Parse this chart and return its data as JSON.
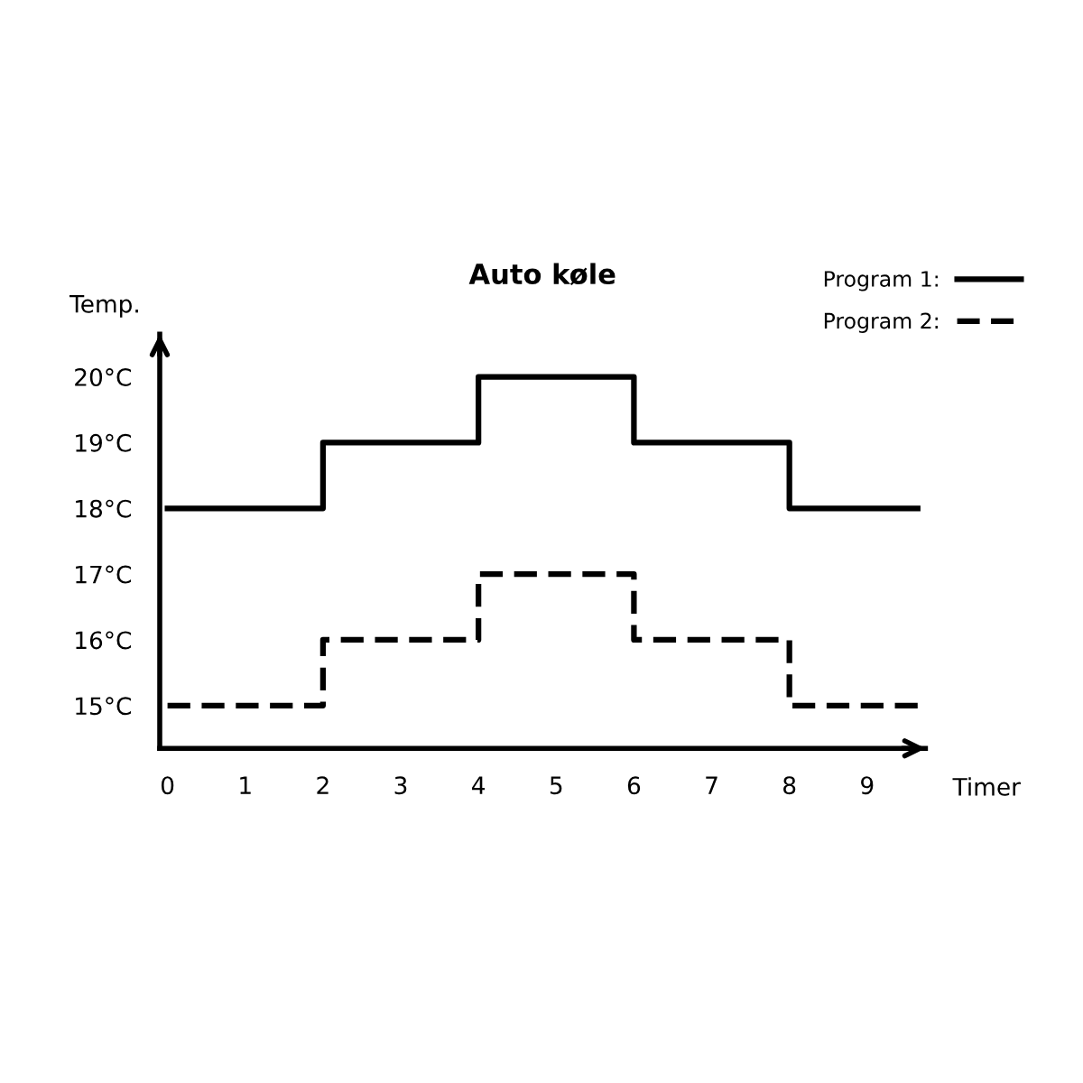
{
  "chart_data": {
    "type": "step",
    "title": "Auto køle",
    "xlabel": "Timer",
    "ylabel": "Temp.",
    "x": [
      0,
      2,
      4,
      6,
      8,
      9.65
    ],
    "series": [
      {
        "name": "Program 1:",
        "color": "#000000",
        "line_style": "solid",
        "values": [
          18,
          19,
          20,
          19,
          18,
          18
        ]
      },
      {
        "name": "Program 2:",
        "color": "#000000",
        "line_style": "dashed",
        "values": [
          15,
          16,
          17,
          16,
          15,
          15
        ]
      }
    ],
    "xlim": [
      -0.1,
      9.75
    ],
    "ylim": [
      14.35,
      20.65
    ],
    "xticks": [
      0,
      1,
      2,
      3,
      4,
      5,
      6,
      7,
      8,
      9
    ],
    "yticks": [
      {
        "value": 15,
        "label": "15°C"
      },
      {
        "value": 16,
        "label": "16°C"
      },
      {
        "value": 17,
        "label": "17°C"
      },
      {
        "value": 18,
        "label": "18°C"
      },
      {
        "value": 19,
        "label": "19°C"
      },
      {
        "value": 20,
        "label": "20°C"
      }
    ],
    "grid": false,
    "legend": "top right",
    "marker": "none"
  }
}
